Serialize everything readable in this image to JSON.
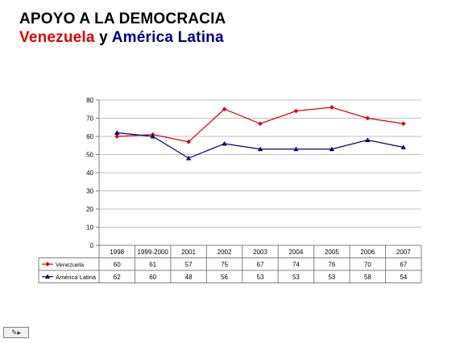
{
  "title": {
    "line1": "APOYO A LA DEMOCRACIA",
    "line2_a": "Venezuela",
    "line2_b": "y",
    "line2_c": "América Latina"
  },
  "colors": {
    "venezuela": "#e00000",
    "america_latina": "#000080",
    "grid": "#c0c0c0",
    "axis": "#808080"
  },
  "chart_data": {
    "type": "line",
    "categories": [
      "1998",
      "1999-2000",
      "2001",
      "2002",
      "2003",
      "2004",
      "2005",
      "2006",
      "2007"
    ],
    "series": [
      {
        "name": "Venezuela",
        "values": [
          60,
          61,
          57,
          75,
          67,
          74,
          76,
          70,
          67
        ],
        "color": "#e00000",
        "marker": "diamond"
      },
      {
        "name": "América Latina",
        "values": [
          62,
          60,
          48,
          56,
          53,
          53,
          53,
          58,
          54
        ],
        "color": "#000080",
        "marker": "triangle"
      }
    ],
    "yticks": [
      "0",
      "10",
      "20",
      "30",
      "40",
      "50",
      "60",
      "70",
      "80"
    ],
    "ylim": [
      0,
      80
    ],
    "grid": true,
    "legend": "data-table"
  },
  "nav_icon": "slide-navigation-icon"
}
